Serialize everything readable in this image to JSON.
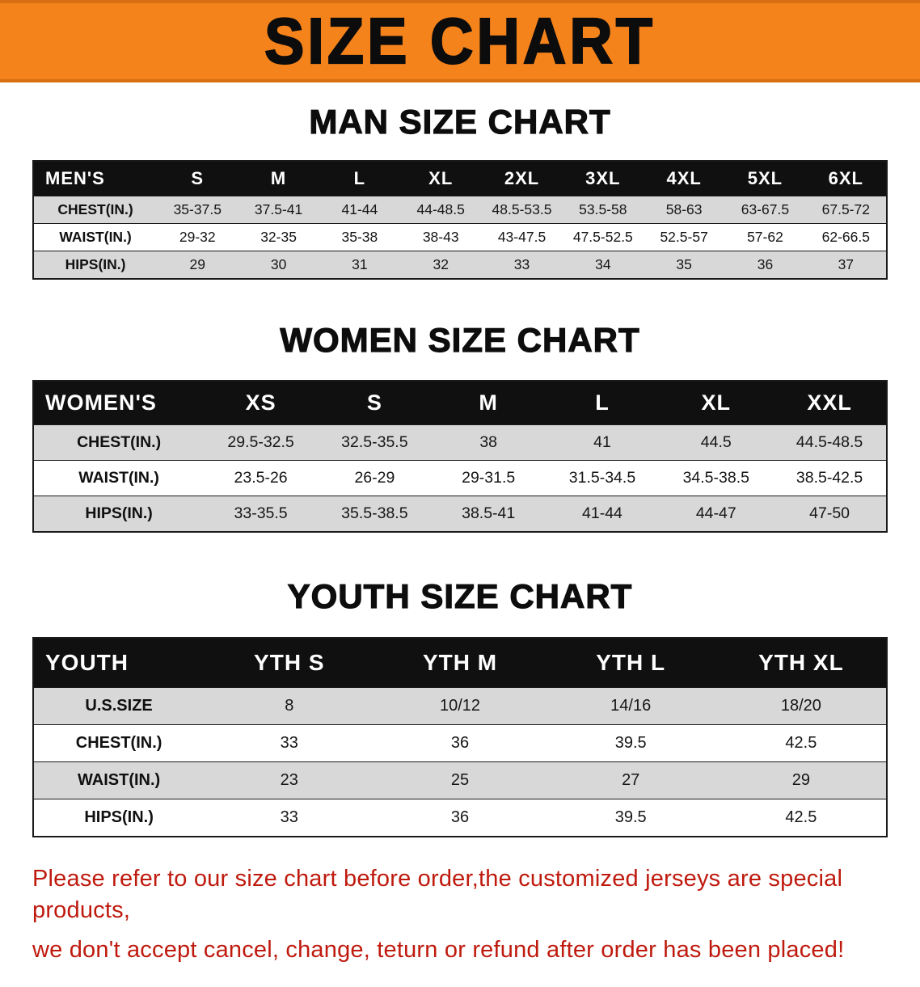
{
  "banner": {
    "title": "SIZE CHART"
  },
  "colors": {
    "banner_bg": "#f5831c",
    "table_header_bg": "#101010",
    "row_alt_bg": "#d8d8d8",
    "disclaimer_text": "#bf1a0e"
  },
  "men": {
    "heading": "MAN SIZE CHART",
    "table": {
      "header": [
        "MEN'S",
        "S",
        "M",
        "L",
        "XL",
        "2XL",
        "3XL",
        "4XL",
        "5XL",
        "6XL"
      ],
      "rows": [
        [
          "CHEST(IN.)",
          "35-37.5",
          "37.5-41",
          "41-44",
          "44-48.5",
          "48.5-53.5",
          "53.5-58",
          "58-63",
          "63-67.5",
          "67.5-72"
        ],
        [
          "WAIST(IN.)",
          "29-32",
          "32-35",
          "35-38",
          "38-43",
          "43-47.5",
          "47.5-52.5",
          "52.5-57",
          "57-62",
          "62-66.5"
        ],
        [
          "HIPS(IN.)",
          "29",
          "30",
          "31",
          "32",
          "33",
          "34",
          "35",
          "36",
          "37"
        ]
      ]
    }
  },
  "women": {
    "heading": "WOMEN SIZE CHART",
    "table": {
      "header": [
        "WOMEN'S",
        "XS",
        "S",
        "M",
        "L",
        "XL",
        "XXL"
      ],
      "rows": [
        [
          "CHEST(IN.)",
          "29.5-32.5",
          "32.5-35.5",
          "38",
          "41",
          "44.5",
          "44.5-48.5"
        ],
        [
          "WAIST(IN.)",
          "23.5-26",
          "26-29",
          "29-31.5",
          "31.5-34.5",
          "34.5-38.5",
          "38.5-42.5"
        ],
        [
          "HIPS(IN.)",
          "33-35.5",
          "35.5-38.5",
          "38.5-41",
          "41-44",
          "44-47",
          "47-50"
        ]
      ]
    }
  },
  "youth": {
    "heading": "YOUTH SIZE CHART",
    "table": {
      "header": [
        "YOUTH",
        "YTH S",
        "YTH M",
        "YTH L",
        "YTH XL"
      ],
      "rows": [
        [
          "U.S.SIZE",
          "8",
          "10/12",
          "14/16",
          "18/20"
        ],
        [
          "CHEST(IN.)",
          "33",
          "36",
          "39.5",
          "42.5"
        ],
        [
          "WAIST(IN.)",
          "23",
          "25",
          "27",
          "29"
        ],
        [
          "HIPS(IN.)",
          "33",
          "36",
          "39.5",
          "42.5"
        ]
      ]
    }
  },
  "disclaimer": {
    "line1": "Please refer to our size chart before order,the customized jerseys are special products,",
    "line2": "we don't accept cancel, change, teturn or refund after order has been placed!"
  }
}
